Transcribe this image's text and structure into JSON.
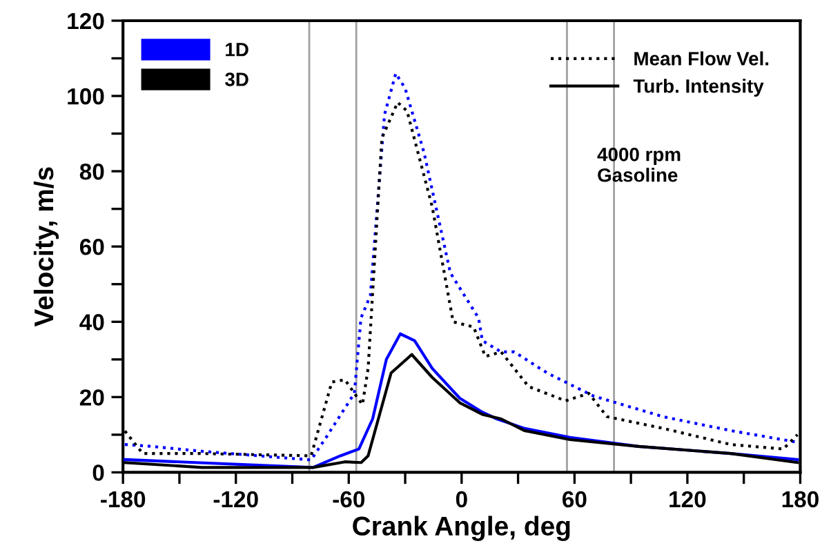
{
  "chart_data": {
    "type": "line",
    "xlabel": "Crank Angle, deg",
    "ylabel": "Velocity, m/s",
    "xlim": [
      -180,
      180
    ],
    "ylim": [
      0,
      120
    ],
    "xticks": [
      -180,
      {
        "value": -150,
        "label": null
      },
      -120,
      {
        "value": -90,
        "label": null
      },
      -60,
      {
        "value": -30,
        "label": null
      },
      0,
      {
        "value": 30,
        "label": null
      },
      60,
      {
        "value": 90,
        "label": null
      },
      120,
      {
        "value": 150,
        "label": null
      },
      180
    ],
    "yticks": [
      0,
      {
        "value": 10,
        "label": null
      },
      20,
      {
        "value": 30,
        "label": null
      },
      40,
      {
        "value": 50,
        "label": null
      },
      60,
      {
        "value": 70,
        "label": null
      },
      80,
      {
        "value": 90,
        "label": null
      },
      100,
      {
        "value": 110,
        "label": null
      },
      120
    ],
    "grid": false,
    "legend": "top left",
    "marker": "none",
    "series": [
      {
        "name": "1D",
        "color": "#0000ff",
        "line_style": "dotted",
        "x": [
          -179,
          -167,
          -138,
          -80,
          -72,
          -57,
          -53.5,
          -48.5,
          -41,
          -35,
          -30,
          -20,
          -6,
          9,
          11,
          21,
          28,
          45.5,
          70,
          107,
          143,
          178.5
        ],
        "values": [
          7.4,
          7,
          5.6,
          3.3,
          9.3,
          21,
          41,
          47,
          95,
          106,
          102,
          85,
          53,
          41,
          35,
          32,
          32,
          26.4,
          20.3,
          14.8,
          11.1,
          8
        ]
      },
      {
        "name": "3D",
        "color": "#000000",
        "line_style": "dotted",
        "x": [
          -179,
          -169.5,
          -138,
          -80,
          -69,
          -62,
          -56,
          -52.7,
          -49.7,
          -42.4,
          -34,
          -29,
          -15.6,
          -4.5,
          6.4,
          12.6,
          21,
          35.6,
          55.3,
          67.6,
          77.3,
          107,
          143,
          171,
          178.5
        ],
        "values": [
          11,
          5,
          5,
          4.4,
          24,
          24.6,
          20.3,
          18,
          27.6,
          88.8,
          98.3,
          96,
          70.5,
          40,
          38.6,
          30.8,
          32,
          22.8,
          19,
          21,
          14.8,
          11.7,
          7.4,
          6.2,
          10
        ]
      },
      {
        "color": "#0000ff",
        "line_style": "solid",
        "x": [
          -179,
          -79,
          -64.4,
          -54.6,
          -47.3,
          -40,
          -32.6,
          -25,
          -15.6,
          -1,
          11,
          18.7,
          33.3,
          57.6,
          94,
          143,
          178.5
        ],
        "values": [
          3.4,
          1.3,
          4.4,
          6.2,
          14.2,
          30,
          36.8,
          35,
          27.6,
          19.7,
          16,
          14.2,
          11.7,
          9.3,
          6.9,
          5,
          3.4
        ]
      },
      {
        "color": "#000000",
        "line_style": "solid",
        "x": [
          -179,
          -138,
          -79,
          -62,
          -53.4,
          -49.7,
          -37.5,
          -26.5,
          -15.6,
          -1,
          11,
          21,
          33.3,
          57.6,
          94,
          143,
          178.5
        ],
        "values": [
          2.6,
          1.3,
          1.3,
          2.8,
          2.6,
          4.4,
          26.4,
          31.3,
          25.2,
          18.5,
          15.4,
          14.2,
          11.1,
          8.7,
          6.9,
          5,
          2.6
        ]
      }
    ],
    "ref_lines": [
      {
        "axis": "x",
        "value": -81,
        "color": "#a0a0a0"
      },
      {
        "axis": "x",
        "value": -56,
        "color": "#a0a0a0"
      },
      {
        "axis": "x",
        "value": 56,
        "color": "#a0a0a0"
      },
      {
        "axis": "x",
        "value": 81,
        "color": "#a0a0a0"
      }
    ],
    "annotations": [
      "Mean Flow Vel.",
      "Turb. Intensity",
      "4000 rpm\nGasoline"
    ]
  }
}
